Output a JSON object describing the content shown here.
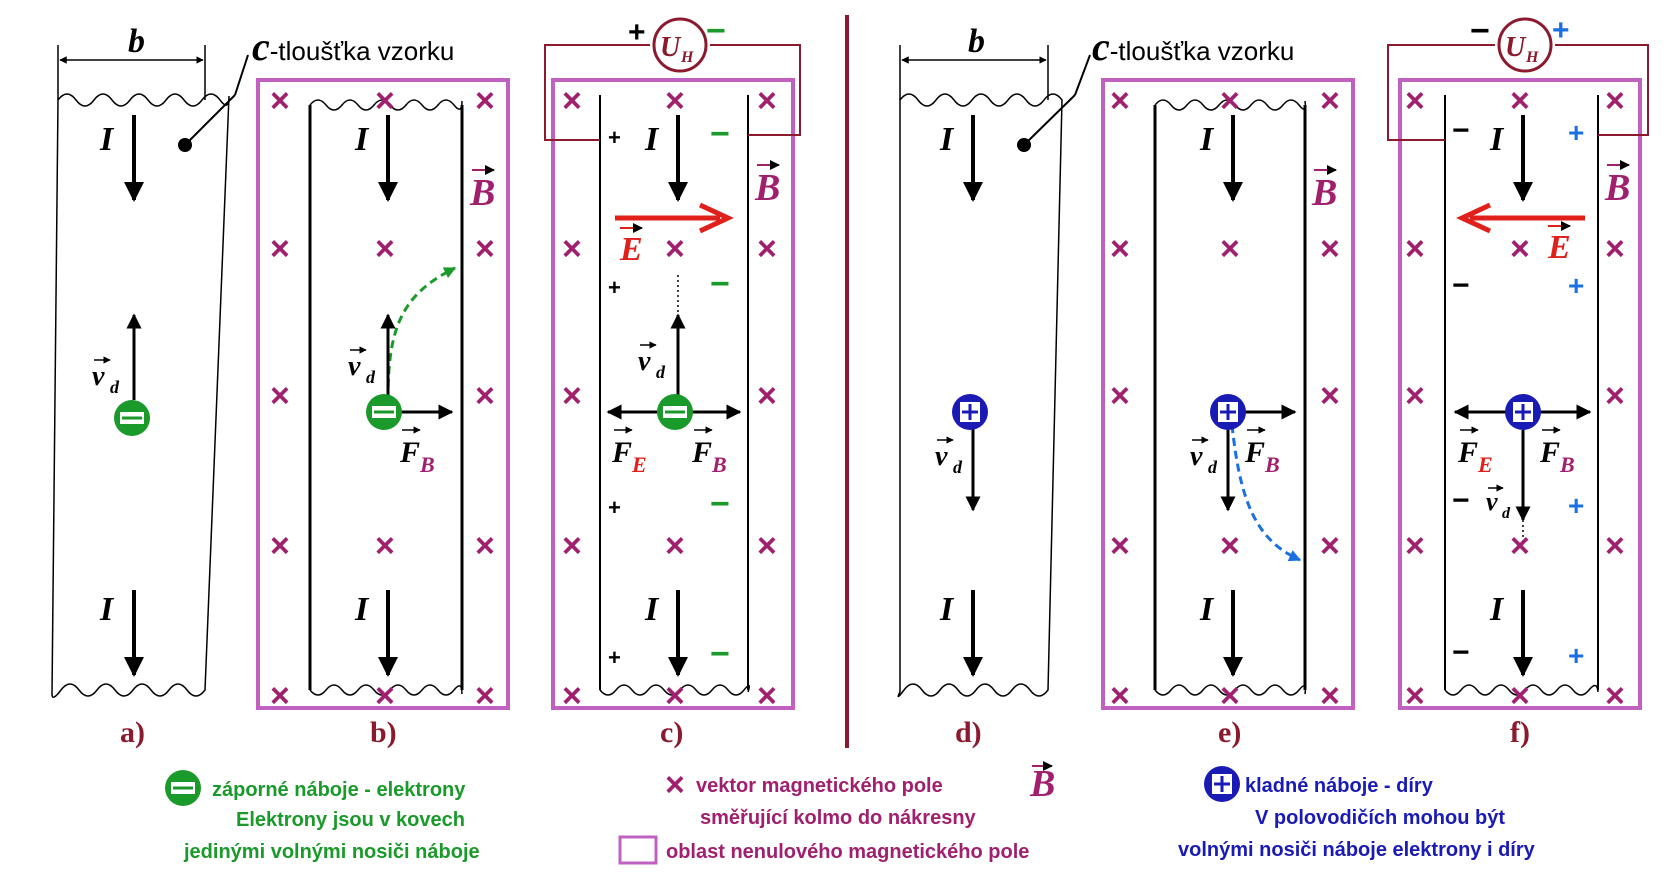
{
  "labels": {
    "width_symbol": "b",
    "thickness_symbol": "c",
    "thickness_text": "-tloušťka vzorku",
    "current_symbol": "I",
    "field_B_symbol": "B",
    "field_E_symbol": "E",
    "hall_voltage_symbol": "U",
    "hall_voltage_sub": "H",
    "velocity_symbol": "v",
    "velocity_sub": "d",
    "force_symbol": "F",
    "force_B_sub": "B",
    "force_E_sub": "E",
    "plus_sign": "+",
    "minus_sign": "−",
    "cross_mark": "×"
  },
  "panels": [
    "a)",
    "b)",
    "c)",
    "d)",
    "e)",
    "f)"
  ],
  "legend": {
    "electron_line1": "záporné náboje - elektrony",
    "electron_line2": "Elektrony jsou v kovech",
    "electron_line3": "jedinými volnými nosiči náboje",
    "field_line1": "vektor magnetického pole",
    "field_line2": "směřující kolmo do nákresny",
    "region_text": "oblast nenulového magnetického pole",
    "hole_line1": "kladné náboje - díry",
    "hole_line2": "V polovodičích mohou být",
    "hole_line3": "volnými nosiči náboje elektrony i díry"
  },
  "colors": {
    "electron": "#1a9a2a",
    "hole": "#1a1ab5",
    "field": "#a0206e",
    "field_region": "#c060c0",
    "e_field": "#e0201a",
    "hall_plus": "#1a70e0",
    "divider": "#8b1a2e",
    "label_dark": "#8b1a2e"
  }
}
